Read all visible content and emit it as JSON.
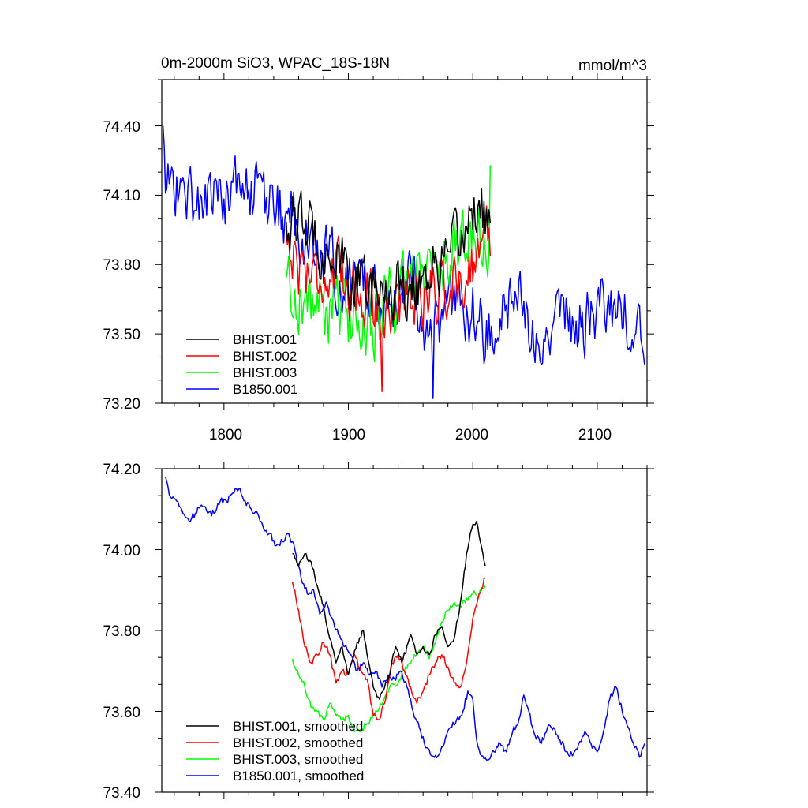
{
  "chart_data": [
    {
      "type": "line",
      "title": "0m-2000m SiO3, WPAC_18S-18N",
      "units": "mmol/m^3",
      "xlim": [
        1750,
        2140
      ],
      "ylim": [
        73.2,
        74.6
      ],
      "xticks": [
        1800,
        1900,
        2000,
        2100
      ],
      "xtick_labels": [
        "1800",
        "1900",
        "2000",
        "2100"
      ],
      "yticks": [
        73.2,
        73.5,
        73.8,
        74.1,
        74.4
      ],
      "ytick_labels": [
        "73.20",
        "73.50",
        "73.80",
        "74.10",
        "74.40"
      ],
      "legend": "bottom-left",
      "series": [
        {
          "name": "BHIST.001",
          "color": "#000000",
          "x_start": 1850,
          "x_end": 2014,
          "trend": [
            [
              1850,
              74.0
            ],
            [
              1870,
              73.95
            ],
            [
              1890,
              73.82
            ],
            [
              1905,
              73.72
            ],
            [
              1920,
              73.68
            ],
            [
              1935,
              73.7
            ],
            [
              1950,
              73.72
            ],
            [
              1965,
              73.78
            ],
            [
              1980,
              73.8
            ],
            [
              1990,
              73.9
            ],
            [
              2000,
              74.05
            ],
            [
              2007,
              74.05
            ],
            [
              2014,
              73.95
            ]
          ],
          "noise": 0.12
        },
        {
          "name": "BHIST.002",
          "color": "#ff0000",
          "x_start": 1850,
          "x_end": 2014,
          "trend": [
            [
              1850,
              73.92
            ],
            [
              1860,
              73.8
            ],
            [
              1880,
              73.75
            ],
            [
              1900,
              73.72
            ],
            [
              1915,
              73.68
            ],
            [
              1930,
              73.6
            ],
            [
              1945,
              73.66
            ],
            [
              1960,
              73.68
            ],
            [
              1975,
              73.7
            ],
            [
              1990,
              73.72
            ],
            [
              2000,
              73.82
            ],
            [
              2014,
              73.93
            ]
          ],
          "noise": 0.12,
          "min_point": [
            1927,
            73.25
          ]
        },
        {
          "name": "BHIST.003",
          "color": "#00ff00",
          "x_start": 1850,
          "x_end": 2014,
          "trend": [
            [
              1850,
              73.72
            ],
            [
              1865,
              73.65
            ],
            [
              1880,
              73.6
            ],
            [
              1900,
              73.57
            ],
            [
              1915,
              73.55
            ],
            [
              1930,
              73.6
            ],
            [
              1945,
              73.68
            ],
            [
              1960,
              73.75
            ],
            [
              1975,
              73.82
            ],
            [
              1990,
              73.88
            ],
            [
              2000,
              73.9
            ],
            [
              2014,
              73.95
            ]
          ],
          "noise": 0.14,
          "max_point": [
            2014,
            74.23
          ]
        },
        {
          "name": "B1850.001",
          "color": "#0000ff",
          "x_start": 1751,
          "x_end": 2138,
          "trend": [
            [
              1751,
              74.17
            ],
            [
              1765,
              74.12
            ],
            [
              1780,
              74.07
            ],
            [
              1800,
              74.1
            ],
            [
              1815,
              74.14
            ],
            [
              1830,
              74.07
            ],
            [
              1850,
              74.02
            ],
            [
              1870,
              73.9
            ],
            [
              1885,
              73.8
            ],
            [
              1900,
              73.72
            ],
            [
              1915,
              73.7
            ],
            [
              1925,
              73.66
            ],
            [
              1940,
              73.7
            ],
            [
              1955,
              73.72
            ],
            [
              1965,
              73.5
            ],
            [
              1980,
              73.55
            ],
            [
              1990,
              73.63
            ],
            [
              2000,
              73.58
            ],
            [
              2010,
              73.5
            ],
            [
              2020,
              73.53
            ],
            [
              2035,
              73.62
            ],
            [
              2050,
              73.55
            ],
            [
              2065,
              73.56
            ],
            [
              2080,
              73.52
            ],
            [
              2095,
              73.55
            ],
            [
              2110,
              73.65
            ],
            [
              2125,
              73.55
            ],
            [
              2138,
              73.52
            ]
          ],
          "noise": 0.13,
          "max_point": [
            1751,
            74.4
          ],
          "min_point": [
            1968,
            73.22
          ]
        }
      ]
    },
    {
      "type": "line",
      "title": "",
      "xlim": [
        1750,
        2140
      ],
      "ylim": [
        73.4,
        74.2
      ],
      "xticks": [
        1800,
        1900,
        2000,
        2100
      ],
      "yticks": [
        73.4,
        73.6,
        73.8,
        74.0,
        74.2
      ],
      "ytick_labels": [
        "73.40",
        "73.60",
        "73.80",
        "74.00",
        "74.20"
      ],
      "legend": "bottom-left",
      "series": [
        {
          "name": "BHIST.001, smoothed",
          "color": "#000000",
          "points": [
            [
              1855,
              73.99
            ],
            [
              1860,
              73.96
            ],
            [
              1865,
              73.99
            ],
            [
              1870,
              73.97
            ],
            [
              1875,
              73.91
            ],
            [
              1880,
              73.86
            ],
            [
              1885,
              73.78
            ],
            [
              1890,
              73.72
            ],
            [
              1895,
              73.76
            ],
            [
              1900,
              73.69
            ],
            [
              1905,
              73.75
            ],
            [
              1912,
              73.8
            ],
            [
              1915,
              73.74
            ],
            [
              1920,
              73.66
            ],
            [
              1925,
              73.63
            ],
            [
              1932,
              73.68
            ],
            [
              1938,
              73.76
            ],
            [
              1943,
              73.72
            ],
            [
              1950,
              73.79
            ],
            [
              1955,
              73.74
            ],
            [
              1960,
              73.76
            ],
            [
              1965,
              73.74
            ],
            [
              1970,
              73.79
            ],
            [
              1975,
              73.81
            ],
            [
              1980,
              73.76
            ],
            [
              1985,
              73.78
            ],
            [
              1990,
              73.87
            ],
            [
              1995,
              73.99
            ],
            [
              1999,
              74.05
            ],
            [
              2003,
              74.07
            ],
            [
              2006,
              74.02
            ],
            [
              2010,
              73.96
            ]
          ]
        },
        {
          "name": "BHIST.002, smoothed",
          "color": "#ff0000",
          "points": [
            [
              1855,
              73.92
            ],
            [
              1860,
              73.85
            ],
            [
              1865,
              73.76
            ],
            [
              1870,
              73.72
            ],
            [
              1875,
              73.74
            ],
            [
              1880,
              73.77
            ],
            [
              1885,
              73.74
            ],
            [
              1890,
              73.67
            ],
            [
              1895,
              73.7
            ],
            [
              1900,
              73.69
            ],
            [
              1905,
              73.74
            ],
            [
              1910,
              73.7
            ],
            [
              1915,
              73.68
            ],
            [
              1920,
              73.59
            ],
            [
              1925,
              73.58
            ],
            [
              1930,
              73.63
            ],
            [
              1935,
              73.72
            ],
            [
              1940,
              73.74
            ],
            [
              1945,
              73.7
            ],
            [
              1950,
              73.66
            ],
            [
              1955,
              73.62
            ],
            [
              1960,
              73.65
            ],
            [
              1965,
              73.69
            ],
            [
              1970,
              73.72
            ],
            [
              1975,
              73.74
            ],
            [
              1980,
              73.71
            ],
            [
              1985,
              73.67
            ],
            [
              1990,
              73.66
            ],
            [
              1995,
              73.72
            ],
            [
              2000,
              73.83
            ],
            [
              2005,
              73.89
            ],
            [
              2010,
              73.93
            ]
          ]
        },
        {
          "name": "BHIST.003, smoothed",
          "color": "#00ff00",
          "points": [
            [
              1855,
              73.73
            ],
            [
              1860,
              73.69
            ],
            [
              1865,
              73.66
            ],
            [
              1870,
              73.61
            ],
            [
              1875,
              73.6
            ],
            [
              1880,
              73.58
            ],
            [
              1885,
              73.62
            ],
            [
              1890,
              73.59
            ],
            [
              1895,
              73.58
            ],
            [
              1900,
              73.59
            ],
            [
              1905,
              73.55
            ],
            [
              1910,
              73.55
            ],
            [
              1915,
              73.57
            ],
            [
              1920,
              73.59
            ],
            [
              1925,
              73.61
            ],
            [
              1930,
              73.64
            ],
            [
              1935,
              73.67
            ],
            [
              1940,
              73.67
            ],
            [
              1945,
              73.7
            ],
            [
              1950,
              73.72
            ],
            [
              1955,
              73.74
            ],
            [
              1960,
              73.76
            ],
            [
              1965,
              73.73
            ],
            [
              1970,
              73.77
            ],
            [
              1975,
              73.82
            ],
            [
              1980,
              73.85
            ],
            [
              1985,
              73.87
            ],
            [
              1990,
              73.86
            ],
            [
              1995,
              73.88
            ],
            [
              2000,
              73.89
            ],
            [
              2005,
              73.89
            ],
            [
              2010,
              73.91
            ]
          ]
        },
        {
          "name": "B1850.001, smoothed",
          "color": "#0000ff",
          "points": [
            [
              1753,
              74.18
            ],
            [
              1757,
              74.13
            ],
            [
              1762,
              74.12
            ],
            [
              1767,
              74.09
            ],
            [
              1772,
              74.07
            ],
            [
              1777,
              74.09
            ],
            [
              1782,
              74.11
            ],
            [
              1787,
              74.09
            ],
            [
              1792,
              74.09
            ],
            [
              1797,
              74.12
            ],
            [
              1802,
              74.12
            ],
            [
              1807,
              74.14
            ],
            [
              1812,
              74.15
            ],
            [
              1817,
              74.12
            ],
            [
              1822,
              74.1
            ],
            [
              1827,
              74.09
            ],
            [
              1832,
              74.05
            ],
            [
              1837,
              74.04
            ],
            [
              1842,
              74.01
            ],
            [
              1847,
              74.02
            ],
            [
              1852,
              74.04
            ],
            [
              1857,
              74.0
            ],
            [
              1862,
              73.93
            ],
            [
              1867,
              73.89
            ],
            [
              1872,
              73.9
            ],
            [
              1877,
              73.84
            ],
            [
              1882,
              73.87
            ],
            [
              1887,
              73.83
            ],
            [
              1892,
              73.79
            ],
            [
              1897,
              73.76
            ],
            [
              1902,
              73.74
            ],
            [
              1907,
              73.7
            ],
            [
              1912,
              73.72
            ],
            [
              1917,
              73.69
            ],
            [
              1922,
              73.7
            ],
            [
              1927,
              73.66
            ],
            [
              1932,
              73.69
            ],
            [
              1937,
              73.68
            ],
            [
              1942,
              73.7
            ],
            [
              1947,
              73.66
            ],
            [
              1952,
              73.6
            ],
            [
              1957,
              73.56
            ],
            [
              1962,
              73.51
            ],
            [
              1967,
              73.49
            ],
            [
              1972,
              73.49
            ],
            [
              1977,
              73.52
            ],
            [
              1982,
              73.56
            ],
            [
              1987,
              73.58
            ],
            [
              1992,
              73.6
            ],
            [
              1996,
              73.65
            ],
            [
              2000,
              73.63
            ],
            [
              2003,
              73.53
            ],
            [
              2007,
              73.49
            ],
            [
              2012,
              73.48
            ],
            [
              2017,
              73.5
            ],
            [
              2022,
              73.52
            ],
            [
              2027,
              73.5
            ],
            [
              2032,
              73.55
            ],
            [
              2037,
              73.58
            ],
            [
              2041,
              73.64
            ],
            [
              2045,
              73.6
            ],
            [
              2050,
              73.54
            ],
            [
              2055,
              73.52
            ],
            [
              2060,
              73.56
            ],
            [
              2065,
              73.56
            ],
            [
              2070,
              73.53
            ],
            [
              2075,
              73.5
            ],
            [
              2080,
              73.49
            ],
            [
              2085,
              73.52
            ],
            [
              2090,
              73.55
            ],
            [
              2095,
              73.52
            ],
            [
              2100,
              73.5
            ],
            [
              2105,
              73.55
            ],
            [
              2110,
              73.63
            ],
            [
              2115,
              73.66
            ],
            [
              2120,
              73.6
            ],
            [
              2125,
              73.56
            ],
            [
              2130,
              73.51
            ],
            [
              2135,
              73.49
            ],
            [
              2138,
              73.52
            ]
          ]
        }
      ]
    }
  ]
}
